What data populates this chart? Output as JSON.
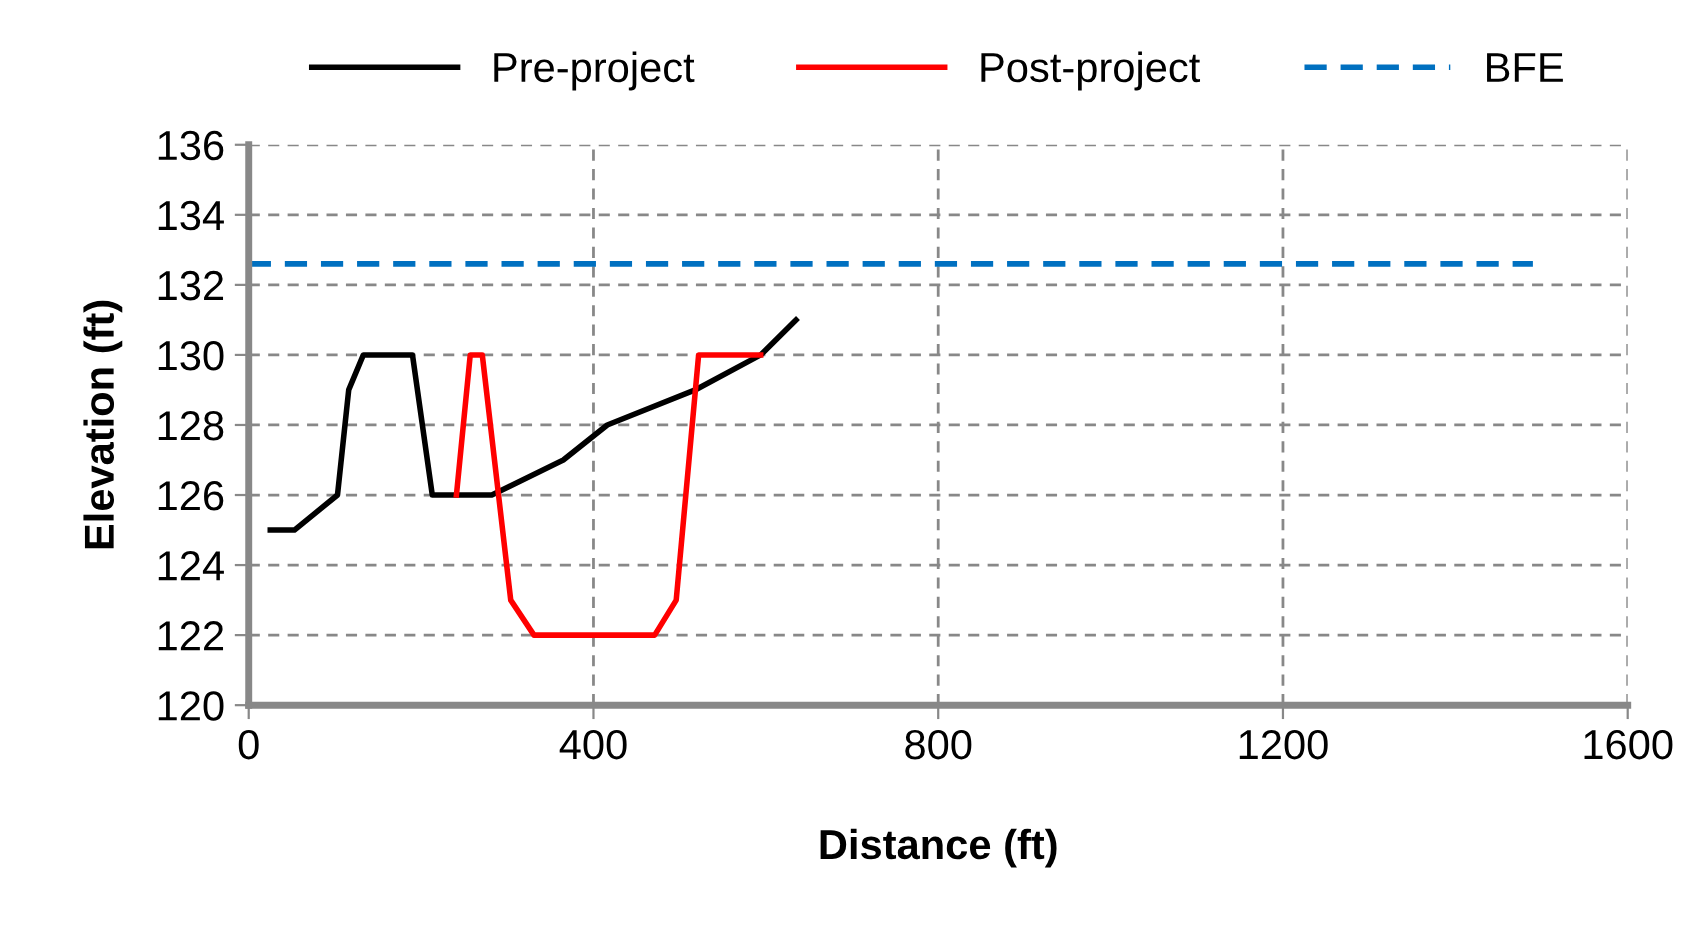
{
  "chart_data": {
    "type": "line",
    "xlabel": "Distance (ft)",
    "ylabel": "Elevation (ft)",
    "xlim": [
      0,
      1600
    ],
    "xticks": [
      0,
      400,
      800,
      1200,
      1600
    ],
    "ylim": [
      120,
      136
    ],
    "yticks": [
      120,
      122,
      124,
      126,
      128,
      130,
      132,
      134,
      136
    ],
    "grid": true,
    "legend": "top",
    "marker": "none",
    "series": [
      {
        "name": "Pre-project",
        "color": "#000000",
        "line_style": "solid",
        "x": [
          25,
          53,
          103,
          116,
          133,
          190,
          213,
          282,
          365,
          416,
          518,
          594,
          635
        ],
        "values": [
          125,
          125,
          126,
          129,
          130,
          130,
          126,
          126,
          127,
          128,
          129,
          130,
          131
        ]
      },
      {
        "name": "Post-project",
        "color": "#ff0000",
        "line_style": "solid",
        "x": [
          241,
          257,
          271,
          304,
          331,
          471,
          496,
          522,
          594
        ],
        "values": [
          126,
          130,
          130,
          123,
          122,
          122,
          123,
          130,
          130
        ]
      },
      {
        "name": "BFE",
        "color": "#0070c0",
        "line_style": "dashed",
        "x": [
          0,
          1490
        ],
        "values": [
          132.6,
          132.6
        ]
      }
    ]
  }
}
